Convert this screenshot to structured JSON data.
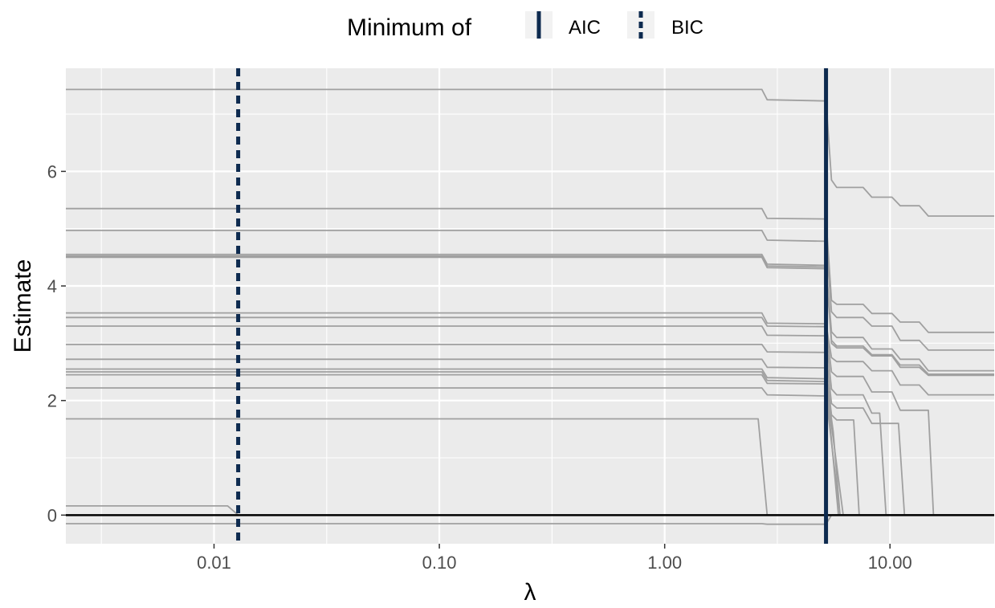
{
  "chart_data": {
    "type": "line",
    "xlabel": "λ",
    "ylabel": "Estimate",
    "x_scale": "log10",
    "xlim": [
      0.0022,
      29
    ],
    "ylim": [
      -0.5,
      7.8
    ],
    "x_ticks": [
      0.01,
      0.1,
      1,
      10
    ],
    "x_tick_labels": [
      "0.01",
      "0.10",
      "1.00",
      "10.00"
    ],
    "y_ticks": [
      0,
      2,
      4,
      6
    ],
    "y_tick_labels": [
      "0",
      "2",
      "4",
      "6"
    ],
    "grid": true,
    "legend": {
      "title": "Minimum of",
      "placement": "top",
      "entries": [
        {
          "label": "AIC",
          "linetype": "solid"
        },
        {
          "label": "BIC",
          "linetype": "dashed"
        }
      ]
    },
    "colors": {
      "panel": "#ebebeb",
      "grid": "#ffffff",
      "path": "#a0a0a0",
      "vline": "#0d2a4f",
      "zero_line": "#000000"
    },
    "reference_lines": [
      {
        "type": "vline",
        "x": 5.2,
        "label": "AIC",
        "linetype": "solid"
      },
      {
        "type": "vline",
        "x": 0.0128,
        "label": "BIC",
        "linetype": "dashed"
      },
      {
        "type": "hline",
        "y": 0,
        "linetype": "solid"
      }
    ],
    "series": [
      {
        "points": [
          [
            0.0022,
            7.43
          ],
          [
            2.7,
            7.43
          ],
          [
            2.85,
            7.25
          ],
          [
            5.2,
            7.23
          ],
          [
            5.5,
            5.85
          ],
          [
            5.8,
            5.72
          ],
          [
            7.6,
            5.72
          ],
          [
            8.3,
            5.55
          ],
          [
            10.2,
            5.55
          ],
          [
            11.1,
            5.4
          ],
          [
            13.5,
            5.4
          ],
          [
            14.8,
            5.22
          ],
          [
            29,
            5.22
          ]
        ]
      },
      {
        "points": [
          [
            0.0022,
            5.35
          ],
          [
            2.7,
            5.35
          ],
          [
            2.85,
            5.18
          ],
          [
            5.2,
            5.17
          ],
          [
            5.5,
            3.75
          ],
          [
            5.8,
            3.68
          ],
          [
            7.6,
            3.68
          ],
          [
            8.3,
            3.52
          ],
          [
            10.2,
            3.52
          ],
          [
            11.1,
            3.37
          ],
          [
            13.5,
            3.37
          ],
          [
            14.8,
            3.19
          ],
          [
            29,
            3.19
          ]
        ]
      },
      {
        "points": [
          [
            0.0022,
            4.97
          ],
          [
            2.7,
            4.97
          ],
          [
            2.85,
            4.8
          ],
          [
            5.2,
            4.78
          ],
          [
            5.5,
            3.55
          ],
          [
            5.8,
            3.45
          ],
          [
            7.6,
            3.45
          ],
          [
            8.3,
            3.3
          ],
          [
            10.2,
            3.3
          ],
          [
            11.1,
            3.05
          ],
          [
            13.5,
            3.05
          ],
          [
            14.8,
            2.88
          ],
          [
            29,
            2.88
          ]
        ]
      },
      {
        "points": [
          [
            0.0022,
            4.55
          ],
          [
            2.7,
            4.55
          ],
          [
            2.85,
            4.38
          ],
          [
            5.2,
            4.36
          ],
          [
            5.5,
            3.2
          ],
          [
            5.8,
            3.1
          ],
          [
            7.6,
            3.1
          ],
          [
            8.3,
            2.9
          ],
          [
            10.2,
            2.9
          ],
          [
            11.1,
            2.72
          ],
          [
            13.5,
            2.72
          ],
          [
            14.8,
            2.52
          ],
          [
            29,
            2.52
          ]
        ]
      },
      {
        "points": [
          [
            0.0022,
            4.52
          ],
          [
            2.7,
            4.52
          ],
          [
            2.85,
            4.35
          ],
          [
            5.2,
            4.33
          ],
          [
            5.5,
            3.05
          ],
          [
            5.8,
            2.95
          ],
          [
            7.6,
            2.95
          ],
          [
            8.3,
            2.8
          ],
          [
            10.2,
            2.8
          ],
          [
            11.1,
            2.62
          ],
          [
            13.5,
            2.62
          ],
          [
            14.8,
            2.46
          ],
          [
            29,
            2.46
          ]
        ]
      },
      {
        "points": [
          [
            0.0022,
            4.5
          ],
          [
            2.7,
            4.5
          ],
          [
            2.85,
            4.32
          ],
          [
            5.2,
            4.3
          ],
          [
            5.5,
            3.0
          ],
          [
            5.8,
            2.92
          ],
          [
            7.6,
            2.92
          ],
          [
            8.3,
            2.78
          ],
          [
            10.2,
            2.78
          ],
          [
            11.1,
            2.58
          ],
          [
            13.5,
            2.58
          ],
          [
            14.8,
            2.44
          ],
          [
            29,
            2.44
          ]
        ]
      },
      {
        "points": [
          [
            0.0022,
            3.53
          ],
          [
            2.7,
            3.53
          ],
          [
            2.85,
            3.35
          ],
          [
            5.2,
            3.34
          ],
          [
            5.5,
            2.75
          ],
          [
            5.8,
            2.68
          ],
          [
            7.6,
            2.68
          ],
          [
            8.3,
            2.52
          ],
          [
            10.2,
            2.52
          ],
          [
            11.1,
            2.27
          ],
          [
            13.5,
            2.27
          ],
          [
            14.8,
            2.1
          ],
          [
            29,
            2.1
          ]
        ]
      },
      {
        "points": [
          [
            0.0022,
            3.45
          ],
          [
            2.7,
            3.45
          ],
          [
            2.85,
            3.3
          ],
          [
            5.2,
            3.29
          ],
          [
            5.5,
            2.5
          ],
          [
            5.8,
            2.42
          ],
          [
            7.6,
            2.42
          ],
          [
            8.3,
            2.15
          ],
          [
            10.2,
            2.15
          ],
          [
            11.1,
            1.83
          ],
          [
            14.8,
            1.83
          ],
          [
            15.6,
            0
          ],
          [
            29,
            0
          ]
        ]
      },
      {
        "points": [
          [
            0.0022,
            3.3
          ],
          [
            2.7,
            3.3
          ],
          [
            2.85,
            3.14
          ],
          [
            5.2,
            3.13
          ],
          [
            5.5,
            2.2
          ],
          [
            5.8,
            2.1
          ],
          [
            7.6,
            2.1
          ],
          [
            8.3,
            1.78
          ],
          [
            9.0,
            1.78
          ],
          [
            9.6,
            0
          ],
          [
            29,
            0
          ]
        ]
      },
      {
        "points": [
          [
            0.0022,
            2.98
          ],
          [
            2.7,
            2.98
          ],
          [
            2.85,
            2.85
          ],
          [
            5.2,
            2.84
          ],
          [
            5.5,
            1.95
          ],
          [
            5.8,
            1.87
          ],
          [
            7.6,
            1.87
          ],
          [
            8.3,
            1.6
          ],
          [
            10.9,
            1.6
          ],
          [
            11.6,
            0
          ],
          [
            29,
            0
          ]
        ]
      },
      {
        "points": [
          [
            0.0022,
            2.72
          ],
          [
            2.7,
            2.72
          ],
          [
            2.85,
            2.58
          ],
          [
            5.2,
            2.57
          ],
          [
            5.5,
            1.75
          ],
          [
            5.8,
            1.66
          ],
          [
            6.9,
            1.66
          ],
          [
            7.3,
            0
          ],
          [
            29,
            0
          ]
        ]
      },
      {
        "points": [
          [
            0.0022,
            2.55
          ],
          [
            2.7,
            2.55
          ],
          [
            2.85,
            2.4
          ],
          [
            5.2,
            2.38
          ],
          [
            5.6,
            1.45
          ],
          [
            6.0,
            0
          ],
          [
            29,
            0
          ]
        ]
      },
      {
        "points": [
          [
            0.0022,
            2.5
          ],
          [
            2.7,
            2.5
          ],
          [
            2.85,
            2.35
          ],
          [
            5.2,
            2.33
          ],
          [
            5.9,
            0
          ],
          [
            29,
            0
          ]
        ]
      },
      {
        "points": [
          [
            0.0022,
            2.45
          ],
          [
            2.7,
            2.45
          ],
          [
            2.85,
            2.3
          ],
          [
            5.2,
            2.29
          ],
          [
            6.2,
            0
          ],
          [
            29,
            0
          ]
        ]
      },
      {
        "points": [
          [
            0.0022,
            2.22
          ],
          [
            2.7,
            2.22
          ],
          [
            2.85,
            2.1
          ],
          [
            5.2,
            2.08
          ],
          [
            6.0,
            0
          ],
          [
            29,
            0
          ]
        ]
      },
      {
        "points": [
          [
            0.0022,
            1.68
          ],
          [
            2.6,
            1.68
          ],
          [
            2.85,
            0
          ],
          [
            29,
            0
          ]
        ]
      },
      {
        "points": [
          [
            0.0022,
            0.16
          ],
          [
            0.0115,
            0.16
          ],
          [
            0.0128,
            0
          ],
          [
            29,
            0
          ]
        ]
      },
      {
        "points": [
          [
            0.0022,
            -0.15
          ],
          [
            2.7,
            -0.15
          ],
          [
            2.85,
            -0.16
          ],
          [
            5.2,
            -0.16
          ],
          [
            5.5,
            0
          ],
          [
            29,
            0
          ]
        ]
      }
    ]
  }
}
